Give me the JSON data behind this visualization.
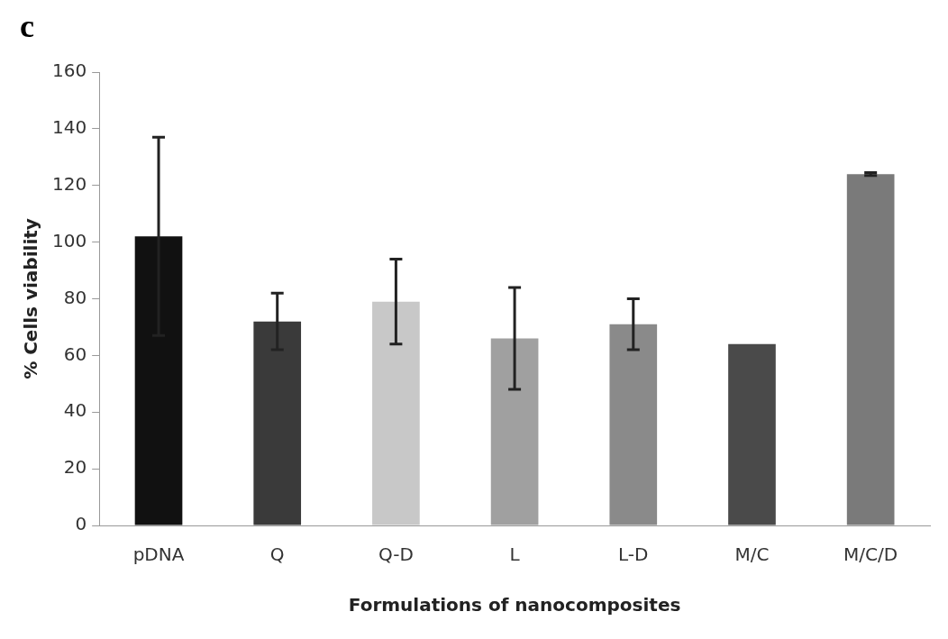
{
  "chart_data": {
    "type": "bar",
    "title": "c",
    "xlabel": "Formulations of nanocomposites",
    "ylabel": "% Cells viability",
    "categories": [
      "pDNA",
      "Q",
      "Q-D",
      "L",
      "L-D",
      "M/C",
      "M/C/D"
    ],
    "values": [
      102,
      72,
      79,
      66,
      71,
      64,
      124
    ],
    "errors": [
      35,
      10,
      15,
      18,
      9,
      null,
      0.5
    ],
    "colors": [
      "#111111",
      "#3a3a3a",
      "#c8c8c8",
      "#a0a0a0",
      "#8a8a8a",
      "#4a4a4a",
      "#7a7a7a"
    ],
    "ylim": [
      0,
      160
    ],
    "yticks": [
      0,
      20,
      40,
      60,
      80,
      100,
      120,
      140,
      160
    ],
    "grid": false,
    "legend": false
  }
}
